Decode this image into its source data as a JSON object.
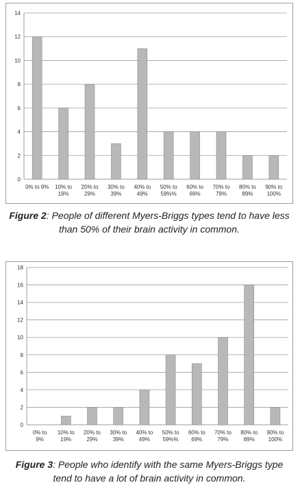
{
  "figures": [
    {
      "caption_label": "Figure 2",
      "caption_text": ": People of different Myers-Briggs types tend to have less than 50% of their brain activity in common."
    },
    {
      "caption_label": "Figure 3",
      "caption_text": ": People who identify with the same Myers-Briggs type tend to have a lot of brain activity in common."
    }
  ],
  "colors": {
    "bar": "#b8b8b8",
    "bar_edge": "#8c8c8c",
    "grid": "#9c9c9c"
  },
  "chart_data": [
    {
      "type": "bar",
      "categories": [
        [
          "0% to 9%"
        ],
        [
          "10% to",
          "19%"
        ],
        [
          "20% to",
          "29%"
        ],
        [
          "30% to",
          "39%"
        ],
        [
          "40% to",
          "49%"
        ],
        [
          "50% to",
          "59%%"
        ],
        [
          "60% to",
          "69%"
        ],
        [
          "70% to",
          "79%"
        ],
        [
          "80% to",
          "89%"
        ],
        [
          "90% to",
          "100%"
        ]
      ],
      "values": [
        12,
        6,
        8,
        3,
        11,
        4,
        4,
        4,
        2,
        2
      ],
      "ylim": [
        0,
        14
      ],
      "yticks": [
        0,
        2,
        4,
        6,
        8,
        10,
        12,
        14
      ],
      "grid": true,
      "title": "",
      "xlabel": "",
      "ylabel": ""
    },
    {
      "type": "bar",
      "categories": [
        [
          "0% to",
          "9%"
        ],
        [
          "10% to",
          "19%"
        ],
        [
          "20% to",
          "29%"
        ],
        [
          "30% to",
          "39%"
        ],
        [
          "40% to",
          "49%"
        ],
        [
          "50% to",
          "59%%"
        ],
        [
          "60% to",
          "69%"
        ],
        [
          "70% to",
          "79%"
        ],
        [
          "80% to",
          "89%"
        ],
        [
          "90% to",
          "100%"
        ]
      ],
      "values": [
        0,
        1,
        2,
        2,
        4,
        8,
        7,
        10,
        16,
        2
      ],
      "ylim": [
        0,
        18
      ],
      "yticks": [
        0,
        2,
        4,
        6,
        8,
        10,
        12,
        14,
        16,
        18
      ],
      "grid": true,
      "title": "",
      "xlabel": "",
      "ylabel": ""
    }
  ]
}
